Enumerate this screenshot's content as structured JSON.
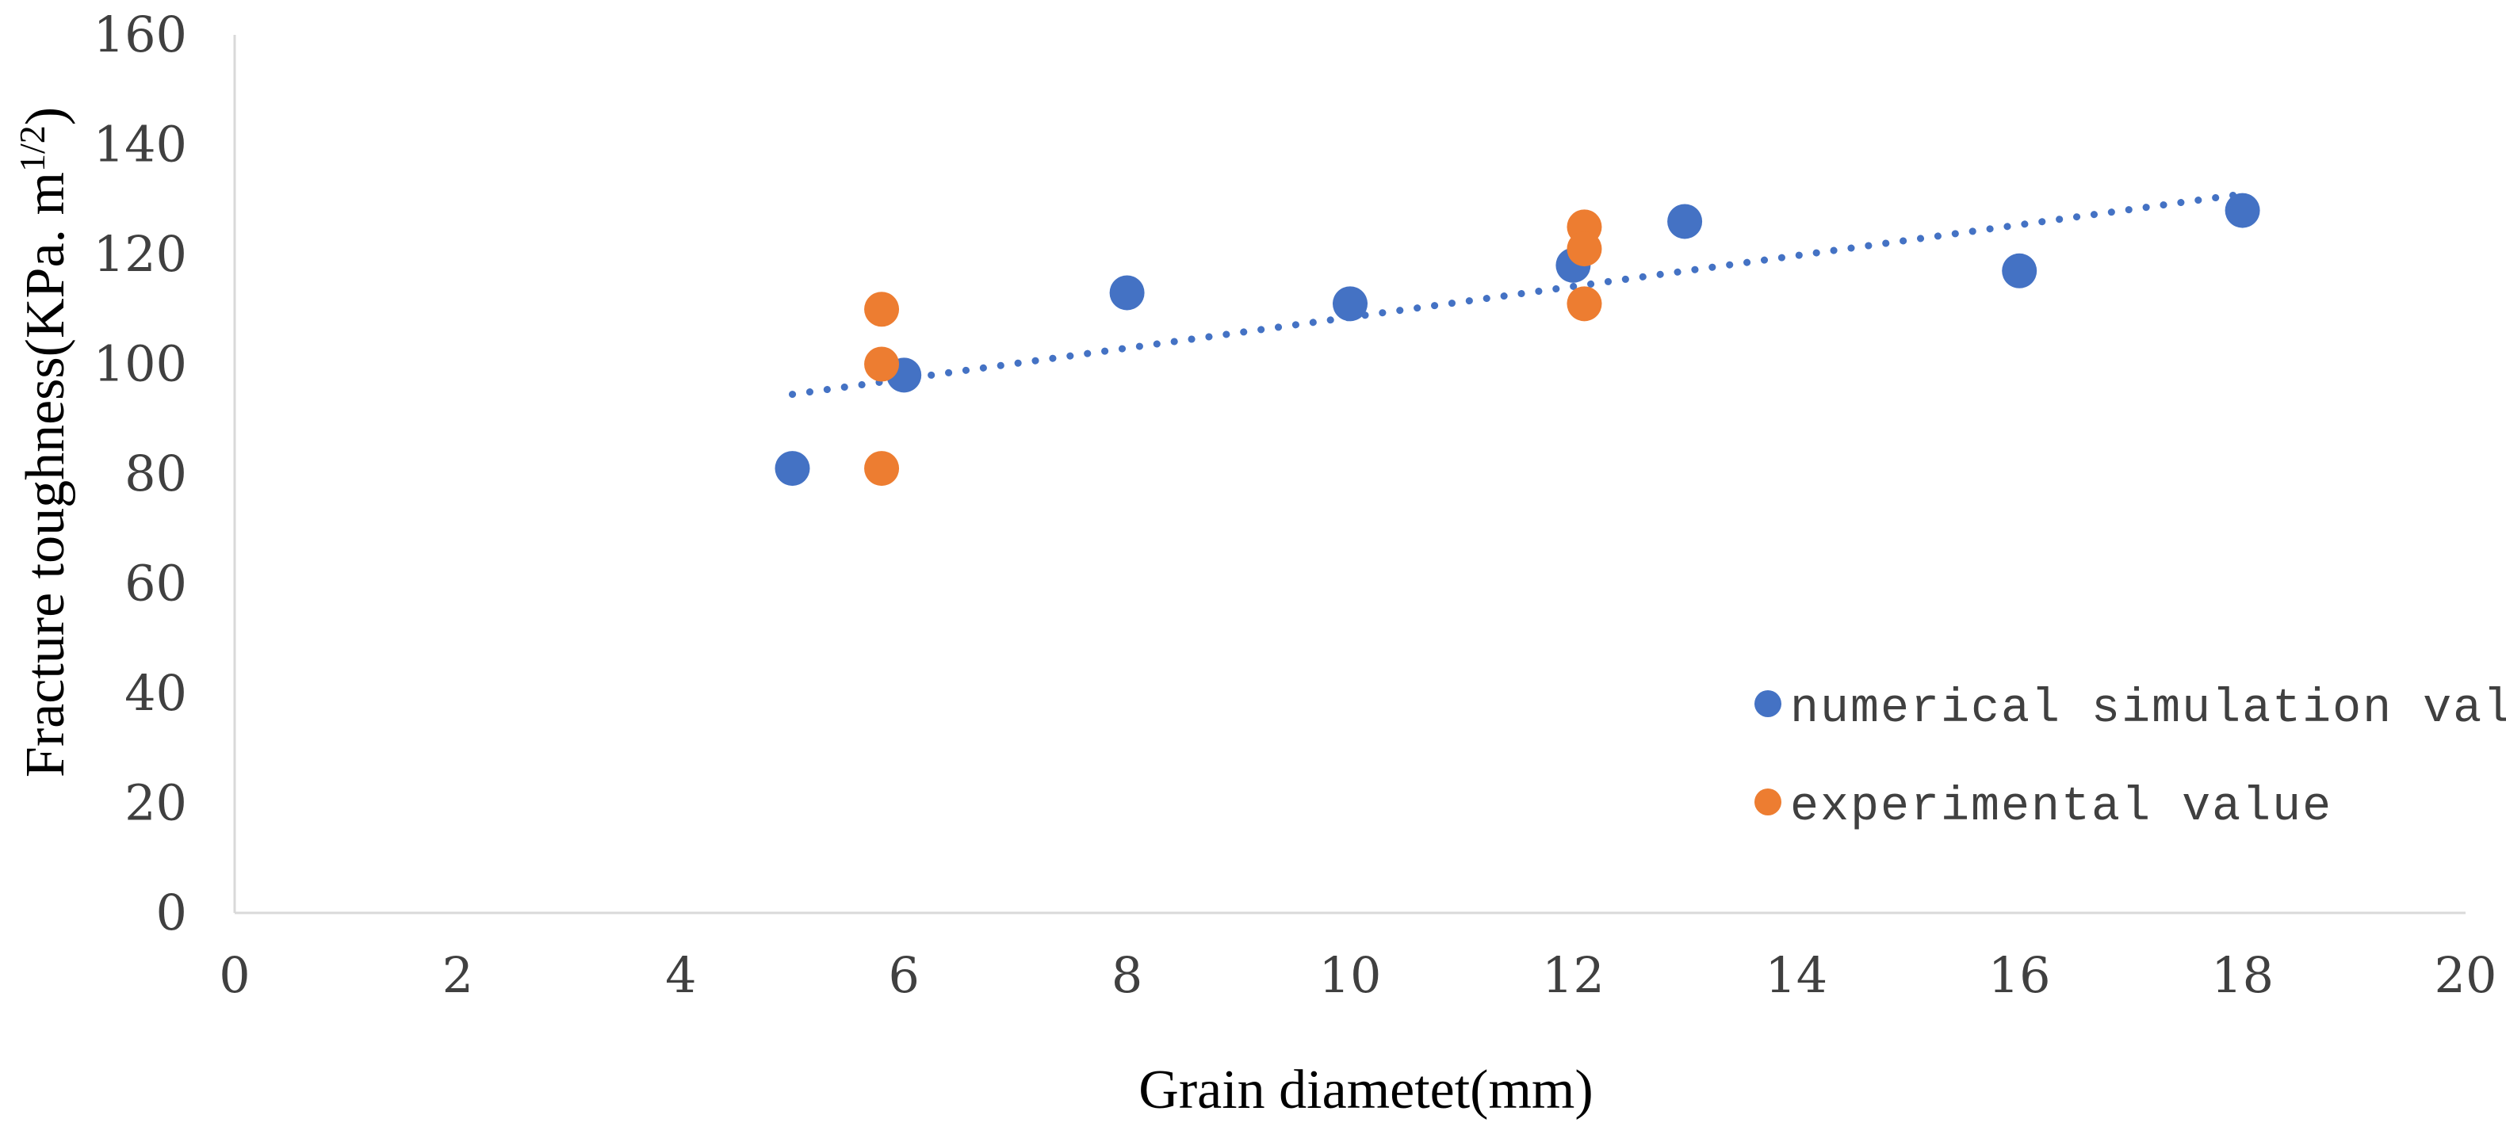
{
  "chart_data": {
    "type": "scatter",
    "title": "",
    "xlabel": "Grain diametet(mm)",
    "ylabel": "Fracture toughness(KPa. m",
    "ylabel_sup": "1/2",
    "ylabel_close": ")",
    "xlim": [
      0,
      20
    ],
    "ylim": [
      0,
      160
    ],
    "xticks": [
      "0",
      "2",
      "4",
      "6",
      "8",
      "10",
      "12",
      "14",
      "16",
      "18",
      "20"
    ],
    "yticks": [
      "0",
      "20",
      "40",
      "60",
      "80",
      "100",
      "120",
      "140",
      "160"
    ],
    "grid": false,
    "legend_position": "right",
    "series": [
      {
        "name": "numerical simulation value",
        "color": "#4472C4",
        "x": [
          5,
          6,
          8,
          10,
          12,
          13,
          16,
          18
        ],
        "y": [
          81,
          98,
          113,
          111,
          118,
          126,
          117,
          128
        ]
      },
      {
        "name": "experimental value",
        "color": "#ED7D31",
        "x": [
          5.8,
          5.8,
          5.8,
          12.1,
          12.1,
          12.1
        ],
        "y": [
          110,
          100,
          81,
          125,
          121,
          111
        ]
      }
    ],
    "trendline": {
      "series": "numerical simulation value",
      "type": "linear",
      "style": "dotted",
      "color": "#4472C4",
      "x_range": [
        5,
        18
      ],
      "y_range": [
        94.5,
        131
      ]
    }
  }
}
